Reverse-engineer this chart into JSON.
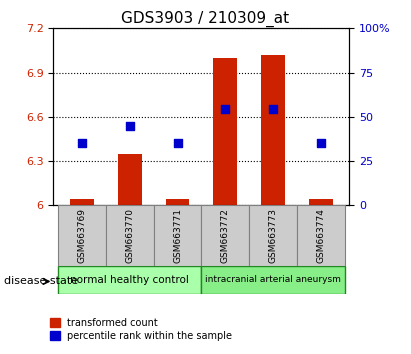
{
  "title": "GDS3903 / 210309_at",
  "samples": [
    "GSM663769",
    "GSM663770",
    "GSM663771",
    "GSM663772",
    "GSM663773",
    "GSM663774"
  ],
  "transformed_count": [
    6.04,
    6.35,
    6.04,
    7.0,
    7.02,
    6.04
  ],
  "percentile_rank": [
    6.42,
    6.54,
    6.42,
    6.65,
    6.65,
    6.42
  ],
  "ylim_left": [
    6.0,
    7.2
  ],
  "ylim_right": [
    0,
    100
  ],
  "yticks_left": [
    6.0,
    6.3,
    6.6,
    6.9,
    7.2
  ],
  "yticks_right": [
    0,
    25,
    50,
    75,
    100
  ],
  "ytick_labels_left": [
    "6",
    "6.3",
    "6.6",
    "6.9",
    "7.2"
  ],
  "ytick_labels_right": [
    "0",
    "25",
    "50",
    "75",
    "100%"
  ],
  "group1_label": "normal healthy control",
  "group2_label": "intracranial arterial aneurysm",
  "group1_samples": [
    0,
    1,
    2
  ],
  "group2_samples": [
    3,
    4,
    5
  ],
  "disease_state_label": "disease state",
  "legend_red_label": "transformed count",
  "legend_blue_label": "percentile rank within the sample",
  "bar_color": "#cc2200",
  "dot_color": "#0000cc",
  "group1_color": "#aaffaa",
  "group2_color": "#88ee88",
  "bar_bottom": 6.0,
  "grid_color": "#000000",
  "grid_alpha": 1.0,
  "grid_linestyle": "dotted"
}
